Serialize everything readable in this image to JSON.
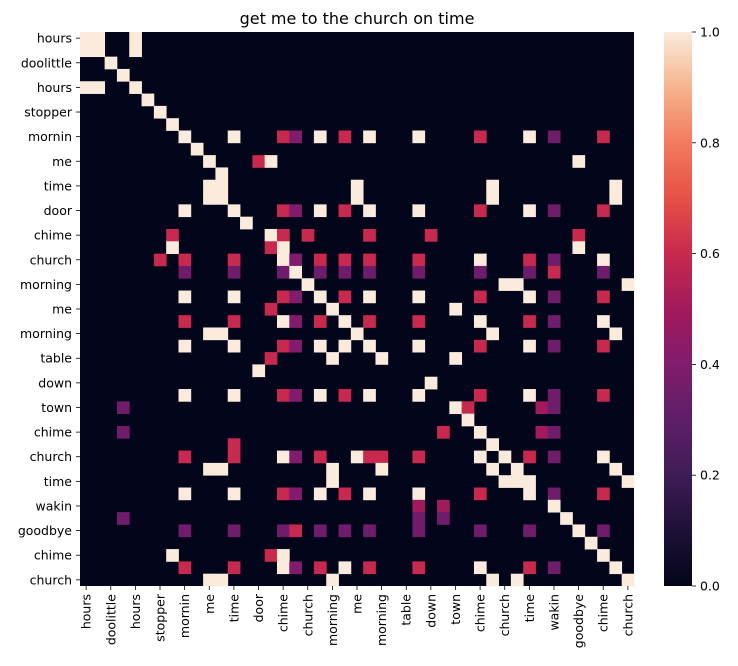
{
  "chart_data": {
    "type": "heatmap",
    "title": "get me to the church on time",
    "row_labels": [
      "hours",
      "doolittle",
      "hours",
      "stopper",
      "mornin",
      "me",
      "time",
      "door",
      "chime",
      "church",
      "morning",
      "me",
      "morning",
      "table",
      "down",
      "town",
      "chime",
      "church",
      "time",
      "wakin",
      "goodbye",
      "chime",
      "church"
    ],
    "col_labels": [
      "hours",
      "doolittle",
      "hours",
      "stopper",
      "mornin",
      "me",
      "time",
      "door",
      "chime",
      "church",
      "morning",
      "me",
      "morning",
      "table",
      "down",
      "town",
      "chime",
      "church",
      "time",
      "wakin",
      "goodbye",
      "chime",
      "church"
    ],
    "n_rows": 45,
    "n_cols": 45,
    "tick_every": 2,
    "colormap": "rocket",
    "vmin": 0.0,
    "vmax": 1.0,
    "colorbar_ticks": [
      "0.0",
      "0.2",
      "0.4",
      "0.6",
      "0.8",
      "1.0"
    ],
    "cells": [
      {
        "r": 0,
        "c": 0,
        "v": 1.0
      },
      {
        "r": 0,
        "c": 1,
        "v": 1.0
      },
      {
        "r": 0,
        "c": 4,
        "v": 1.0
      },
      {
        "r": 1,
        "c": 0,
        "v": 1.0
      },
      {
        "r": 1,
        "c": 1,
        "v": 1.0
      },
      {
        "r": 1,
        "c": 4,
        "v": 1.0
      },
      {
        "r": 2,
        "c": 2,
        "v": 1.0
      },
      {
        "r": 3,
        "c": 3,
        "v": 1.0
      },
      {
        "r": 4,
        "c": 0,
        "v": 1.0
      },
      {
        "r": 4,
        "c": 1,
        "v": 1.0
      },
      {
        "r": 4,
        "c": 4,
        "v": 1.0
      },
      {
        "r": 5,
        "c": 5,
        "v": 1.0
      },
      {
        "r": 6,
        "c": 6,
        "v": 1.0
      },
      {
        "r": 7,
        "c": 7,
        "v": 1.0
      },
      {
        "r": 8,
        "c": 8,
        "v": 1.0
      },
      {
        "r": 8,
        "c": 12,
        "v": 1.0
      },
      {
        "r": 8,
        "c": 16,
        "v": 0.6
      },
      {
        "r": 8,
        "c": 17,
        "v": 0.4
      },
      {
        "r": 8,
        "c": 19,
        "v": 1.0
      },
      {
        "r": 8,
        "c": 21,
        "v": 0.6
      },
      {
        "r": 8,
        "c": 23,
        "v": 1.0
      },
      {
        "r": 8,
        "c": 27,
        "v": 1.0
      },
      {
        "r": 8,
        "c": 32,
        "v": 0.6
      },
      {
        "r": 8,
        "c": 36,
        "v": 1.0
      },
      {
        "r": 8,
        "c": 38,
        "v": 0.35
      },
      {
        "r": 8,
        "c": 42,
        "v": 0.6
      },
      {
        "r": 9,
        "c": 9,
        "v": 1.0
      },
      {
        "r": 10,
        "c": 10,
        "v": 1.0
      },
      {
        "r": 10,
        "c": 14,
        "v": 0.6
      },
      {
        "r": 10,
        "c": 15,
        "v": 1.0
      },
      {
        "r": 10,
        "c": 40,
        "v": 1.0
      },
      {
        "r": 11,
        "c": 11,
        "v": 1.0
      },
      {
        "r": 12,
        "c": 10,
        "v": 1.0
      },
      {
        "r": 12,
        "c": 11,
        "v": 1.0
      },
      {
        "r": 12,
        "c": 22,
        "v": 1.0
      },
      {
        "r": 12,
        "c": 33,
        "v": 1.0
      },
      {
        "r": 12,
        "c": 43,
        "v": 1.0
      },
      {
        "r": 13,
        "c": 10,
        "v": 1.0
      },
      {
        "r": 13,
        "c": 11,
        "v": 1.0
      },
      {
        "r": 13,
        "c": 22,
        "v": 1.0
      },
      {
        "r": 13,
        "c": 33,
        "v": 1.0
      },
      {
        "r": 13,
        "c": 43,
        "v": 1.0
      },
      {
        "r": 14,
        "c": 8,
        "v": 1.0
      },
      {
        "r": 14,
        "c": 12,
        "v": 1.0
      },
      {
        "r": 14,
        "c": 16,
        "v": 0.6
      },
      {
        "r": 14,
        "c": 17,
        "v": 0.4
      },
      {
        "r": 14,
        "c": 19,
        "v": 1.0
      },
      {
        "r": 14,
        "c": 21,
        "v": 0.6
      },
      {
        "r": 14,
        "c": 23,
        "v": 1.0
      },
      {
        "r": 14,
        "c": 27,
        "v": 1.0
      },
      {
        "r": 14,
        "c": 32,
        "v": 0.6
      },
      {
        "r": 14,
        "c": 36,
        "v": 1.0
      },
      {
        "r": 14,
        "c": 38,
        "v": 0.35
      },
      {
        "r": 14,
        "c": 42,
        "v": 0.6
      },
      {
        "r": 15,
        "c": 13,
        "v": 1.0
      },
      {
        "r": 16,
        "c": 7,
        "v": 0.6
      },
      {
        "r": 16,
        "c": 15,
        "v": 1.0
      },
      {
        "r": 16,
        "c": 16,
        "v": 0.6
      },
      {
        "r": 16,
        "c": 18,
        "v": 0.6
      },
      {
        "r": 16,
        "c": 23,
        "v": 0.6
      },
      {
        "r": 16,
        "c": 28,
        "v": 0.6
      },
      {
        "r": 16,
        "c": 40,
        "v": 0.6
      },
      {
        "r": 17,
        "c": 7,
        "v": 1.0
      },
      {
        "r": 17,
        "c": 15,
        "v": 0.6
      },
      {
        "r": 17,
        "c": 16,
        "v": 1.0
      },
      {
        "r": 17,
        "c": 40,
        "v": 1.0
      },
      {
        "r": 18,
        "c": 6,
        "v": 0.6
      },
      {
        "r": 18,
        "c": 8,
        "v": 0.6
      },
      {
        "r": 18,
        "c": 12,
        "v": 0.6
      },
      {
        "r": 18,
        "c": 16,
        "v": 1.0
      },
      {
        "r": 18,
        "c": 17,
        "v": 0.4
      },
      {
        "r": 18,
        "c": 19,
        "v": 0.6
      },
      {
        "r": 18,
        "c": 21,
        "v": 0.6
      },
      {
        "r": 18,
        "c": 23,
        "v": 0.6
      },
      {
        "r": 18,
        "c": 27,
        "v": 0.6
      },
      {
        "r": 18,
        "c": 32,
        "v": 1.0
      },
      {
        "r": 18,
        "c": 36,
        "v": 0.6
      },
      {
        "r": 18,
        "c": 38,
        "v": 0.35
      },
      {
        "r": 18,
        "c": 42,
        "v": 1.0
      },
      {
        "r": 19,
        "c": 8,
        "v": 0.35
      },
      {
        "r": 19,
        "c": 12,
        "v": 0.35
      },
      {
        "r": 19,
        "c": 16,
        "v": 0.35
      },
      {
        "r": 19,
        "c": 17,
        "v": 1.0
      },
      {
        "r": 19,
        "c": 19,
        "v": 0.35
      },
      {
        "r": 19,
        "c": 21,
        "v": 0.35
      },
      {
        "r": 19,
        "c": 23,
        "v": 0.35
      },
      {
        "r": 19,
        "c": 27,
        "v": 0.35
      },
      {
        "r": 19,
        "c": 32,
        "v": 0.35
      },
      {
        "r": 19,
        "c": 36,
        "v": 0.35
      },
      {
        "r": 19,
        "c": 38,
        "v": 0.6
      },
      {
        "r": 19,
        "c": 42,
        "v": 0.35
      },
      {
        "r": 20,
        "c": 18,
        "v": 1.0
      },
      {
        "r": 20,
        "c": 34,
        "v": 1.0
      },
      {
        "r": 20,
        "c": 35,
        "v": 1.0
      },
      {
        "r": 20,
        "c": 44,
        "v": 1.0
      },
      {
        "r": 21,
        "c": 8,
        "v": 1.0
      },
      {
        "r": 21,
        "c": 12,
        "v": 1.0
      },
      {
        "r": 21,
        "c": 16,
        "v": 0.6
      },
      {
        "r": 21,
        "c": 17,
        "v": 0.4
      },
      {
        "r": 21,
        "c": 19,
        "v": 1.0
      },
      {
        "r": 21,
        "c": 21,
        "v": 0.6
      },
      {
        "r": 21,
        "c": 23,
        "v": 1.0
      },
      {
        "r": 21,
        "c": 27,
        "v": 1.0
      },
      {
        "r": 21,
        "c": 32,
        "v": 0.6
      },
      {
        "r": 21,
        "c": 36,
        "v": 1.0
      },
      {
        "r": 21,
        "c": 38,
        "v": 0.35
      },
      {
        "r": 21,
        "c": 42,
        "v": 0.6
      },
      {
        "r": 22,
        "c": 15,
        "v": 0.6
      },
      {
        "r": 22,
        "c": 20,
        "v": 1.0
      },
      {
        "r": 22,
        "c": 30,
        "v": 1.0
      },
      {
        "r": 23,
        "c": 8,
        "v": 0.6
      },
      {
        "r": 23,
        "c": 12,
        "v": 0.6
      },
      {
        "r": 23,
        "c": 16,
        "v": 1.0
      },
      {
        "r": 23,
        "c": 17,
        "v": 0.4
      },
      {
        "r": 23,
        "c": 19,
        "v": 0.6
      },
      {
        "r": 23,
        "c": 21,
        "v": 1.0
      },
      {
        "r": 23,
        "c": 23,
        "v": 0.6
      },
      {
        "r": 23,
        "c": 27,
        "v": 0.6
      },
      {
        "r": 23,
        "c": 32,
        "v": 1.0
      },
      {
        "r": 23,
        "c": 36,
        "v": 0.6
      },
      {
        "r": 23,
        "c": 38,
        "v": 0.35
      },
      {
        "r": 23,
        "c": 42,
        "v": 1.0
      },
      {
        "r": 24,
        "c": 10,
        "v": 1.0
      },
      {
        "r": 24,
        "c": 11,
        "v": 1.0
      },
      {
        "r": 24,
        "c": 22,
        "v": 1.0
      },
      {
        "r": 24,
        "c": 33,
        "v": 1.0
      },
      {
        "r": 24,
        "c": 43,
        "v": 1.0
      },
      {
        "r": 25,
        "c": 8,
        "v": 1.0
      },
      {
        "r": 25,
        "c": 12,
        "v": 1.0
      },
      {
        "r": 25,
        "c": 16,
        "v": 0.6
      },
      {
        "r": 25,
        "c": 17,
        "v": 0.4
      },
      {
        "r": 25,
        "c": 19,
        "v": 1.0
      },
      {
        "r": 25,
        "c": 21,
        "v": 1.0
      },
      {
        "r": 25,
        "c": 23,
        "v": 1.0
      },
      {
        "r": 25,
        "c": 27,
        "v": 1.0
      },
      {
        "r": 25,
        "c": 32,
        "v": 0.6
      },
      {
        "r": 25,
        "c": 36,
        "v": 1.0
      },
      {
        "r": 25,
        "c": 38,
        "v": 0.35
      },
      {
        "r": 25,
        "c": 42,
        "v": 0.6
      },
      {
        "r": 26,
        "c": 15,
        "v": 0.6
      },
      {
        "r": 26,
        "c": 20,
        "v": 1.0
      },
      {
        "r": 26,
        "c": 24,
        "v": 1.0
      },
      {
        "r": 26,
        "c": 30,
        "v": 1.0
      },
      {
        "r": 27,
        "c": 14,
        "v": 1.0
      },
      {
        "r": 28,
        "c": 28,
        "v": 1.0
      },
      {
        "r": 29,
        "c": 8,
        "v": 1.0
      },
      {
        "r": 29,
        "c": 12,
        "v": 1.0
      },
      {
        "r": 29,
        "c": 16,
        "v": 0.6
      },
      {
        "r": 29,
        "c": 17,
        "v": 0.4
      },
      {
        "r": 29,
        "c": 19,
        "v": 1.0
      },
      {
        "r": 29,
        "c": 21,
        "v": 0.6
      },
      {
        "r": 29,
        "c": 23,
        "v": 1.0
      },
      {
        "r": 29,
        "c": 27,
        "v": 1.0
      },
      {
        "r": 29,
        "c": 32,
        "v": 0.6
      },
      {
        "r": 29,
        "c": 36,
        "v": 1.0
      },
      {
        "r": 29,
        "c": 38,
        "v": 0.35
      },
      {
        "r": 29,
        "c": 42,
        "v": 0.6
      },
      {
        "r": 30,
        "c": 3,
        "v": 0.35
      },
      {
        "r": 30,
        "c": 30,
        "v": 1.0
      },
      {
        "r": 30,
        "c": 31,
        "v": 0.6
      },
      {
        "r": 30,
        "c": 37,
        "v": 0.5
      },
      {
        "r": 30,
        "c": 38,
        "v": 0.35
      },
      {
        "r": 31,
        "c": 31,
        "v": 1.0
      },
      {
        "r": 32,
        "c": 3,
        "v": 0.35
      },
      {
        "r": 32,
        "c": 29,
        "v": 0.6
      },
      {
        "r": 32,
        "c": 32,
        "v": 1.0
      },
      {
        "r": 32,
        "c": 37,
        "v": 0.5
      },
      {
        "r": 32,
        "c": 38,
        "v": 0.35
      },
      {
        "r": 33,
        "c": 12,
        "v": 0.6
      },
      {
        "r": 33,
        "c": 33,
        "v": 1.0
      },
      {
        "r": 34,
        "c": 8,
        "v": 0.6
      },
      {
        "r": 34,
        "c": 12,
        "v": 0.6
      },
      {
        "r": 34,
        "c": 16,
        "v": 1.0
      },
      {
        "r": 34,
        "c": 17,
        "v": 0.4
      },
      {
        "r": 34,
        "c": 19,
        "v": 0.6
      },
      {
        "r": 34,
        "c": 22,
        "v": 1.0
      },
      {
        "r": 34,
        "c": 23,
        "v": 0.6
      },
      {
        "r": 34,
        "c": 24,
        "v": 0.6
      },
      {
        "r": 34,
        "c": 27,
        "v": 0.6
      },
      {
        "r": 34,
        "c": 32,
        "v": 1.0
      },
      {
        "r": 34,
        "c": 34,
        "v": 1.0
      },
      {
        "r": 34,
        "c": 36,
        "v": 0.6
      },
      {
        "r": 34,
        "c": 38,
        "v": 0.35
      },
      {
        "r": 34,
        "c": 42,
        "v": 1.0
      },
      {
        "r": 35,
        "c": 10,
        "v": 1.0
      },
      {
        "r": 35,
        "c": 11,
        "v": 1.0
      },
      {
        "r": 35,
        "c": 20,
        "v": 1.0
      },
      {
        "r": 35,
        "c": 24,
        "v": 1.0
      },
      {
        "r": 35,
        "c": 33,
        "v": 1.0
      },
      {
        "r": 35,
        "c": 35,
        "v": 1.0
      },
      {
        "r": 35,
        "c": 43,
        "v": 1.0
      },
      {
        "r": 36,
        "c": 20,
        "v": 1.0
      },
      {
        "r": 36,
        "c": 34,
        "v": 1.0
      },
      {
        "r": 36,
        "c": 35,
        "v": 1.0
      },
      {
        "r": 36,
        "c": 36,
        "v": 1.0
      },
      {
        "r": 36,
        "c": 44,
        "v": 1.0
      },
      {
        "r": 37,
        "c": 8,
        "v": 1.0
      },
      {
        "r": 37,
        "c": 12,
        "v": 1.0
      },
      {
        "r": 37,
        "c": 16,
        "v": 0.6
      },
      {
        "r": 37,
        "c": 17,
        "v": 0.4
      },
      {
        "r": 37,
        "c": 19,
        "v": 1.0
      },
      {
        "r": 37,
        "c": 21,
        "v": 0.6
      },
      {
        "r": 37,
        "c": 23,
        "v": 1.0
      },
      {
        "r": 37,
        "c": 27,
        "v": 1.0
      },
      {
        "r": 37,
        "c": 32,
        "v": 0.6
      },
      {
        "r": 37,
        "c": 36,
        "v": 1.0
      },
      {
        "r": 37,
        "c": 38,
        "v": 0.35
      },
      {
        "r": 37,
        "c": 42,
        "v": 0.6
      },
      {
        "r": 38,
        "c": 27,
        "v": 0.5
      },
      {
        "r": 38,
        "c": 29,
        "v": 0.5
      },
      {
        "r": 38,
        "c": 38,
        "v": 1.0
      },
      {
        "r": 39,
        "c": 3,
        "v": 0.35
      },
      {
        "r": 39,
        "c": 27,
        "v": 0.35
      },
      {
        "r": 39,
        "c": 29,
        "v": 0.35
      },
      {
        "r": 39,
        "c": 39,
        "v": 1.0
      },
      {
        "r": 40,
        "c": 8,
        "v": 0.35
      },
      {
        "r": 40,
        "c": 12,
        "v": 0.35
      },
      {
        "r": 40,
        "c": 16,
        "v": 0.35
      },
      {
        "r": 40,
        "c": 17,
        "v": 0.6
      },
      {
        "r": 40,
        "c": 19,
        "v": 0.35
      },
      {
        "r": 40,
        "c": 21,
        "v": 0.35
      },
      {
        "r": 40,
        "c": 23,
        "v": 0.35
      },
      {
        "r": 40,
        "c": 27,
        "v": 0.35
      },
      {
        "r": 40,
        "c": 32,
        "v": 0.35
      },
      {
        "r": 40,
        "c": 36,
        "v": 0.35
      },
      {
        "r": 40,
        "c": 40,
        "v": 1.0
      },
      {
        "r": 40,
        "c": 42,
        "v": 0.35
      },
      {
        "r": 41,
        "c": 41,
        "v": 1.0
      },
      {
        "r": 42,
        "c": 7,
        "v": 1.0
      },
      {
        "r": 42,
        "c": 15,
        "v": 0.6
      },
      {
        "r": 42,
        "c": 16,
        "v": 1.0
      },
      {
        "r": 42,
        "c": 42,
        "v": 1.0
      },
      {
        "r": 43,
        "c": 8,
        "v": 0.6
      },
      {
        "r": 43,
        "c": 12,
        "v": 0.6
      },
      {
        "r": 43,
        "c": 16,
        "v": 1.0
      },
      {
        "r": 43,
        "c": 17,
        "v": 0.4
      },
      {
        "r": 43,
        "c": 19,
        "v": 0.6
      },
      {
        "r": 43,
        "c": 21,
        "v": 1.0
      },
      {
        "r": 43,
        "c": 23,
        "v": 0.6
      },
      {
        "r": 43,
        "c": 27,
        "v": 0.6
      },
      {
        "r": 43,
        "c": 32,
        "v": 1.0
      },
      {
        "r": 43,
        "c": 36,
        "v": 0.6
      },
      {
        "r": 43,
        "c": 38,
        "v": 0.35
      },
      {
        "r": 43,
        "c": 43,
        "v": 1.0
      },
      {
        "r": 44,
        "c": 10,
        "v": 1.0
      },
      {
        "r": 44,
        "c": 11,
        "v": 1.0
      },
      {
        "r": 44,
        "c": 20,
        "v": 1.0
      },
      {
        "r": 44,
        "c": 33,
        "v": 1.0
      },
      {
        "r": 44,
        "c": 35,
        "v": 1.0
      },
      {
        "r": 44,
        "c": 44,
        "v": 1.0
      }
    ]
  }
}
